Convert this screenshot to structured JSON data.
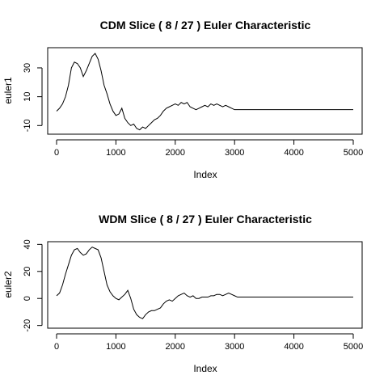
{
  "chart_data": [
    {
      "type": "line",
      "title": "CDM Slice ( 8 / 27 ) Euler Characteristic",
      "xlabel": "Index",
      "ylabel": "euler1",
      "xlim": [
        -150,
        5150
      ],
      "ylim": [
        -16,
        44
      ],
      "xticks": [
        0,
        1000,
        2000,
        3000,
        4000,
        5000
      ],
      "xtick_labels": [
        "0",
        "1000",
        "2000",
        "3000",
        "4000",
        "5000"
      ],
      "yticks": [
        -10,
        10,
        30
      ],
      "ytick_labels": [
        "-10",
        "10",
        "30"
      ],
      "grid": false,
      "x": [
        0,
        50,
        100,
        150,
        200,
        250,
        300,
        350,
        400,
        450,
        500,
        550,
        600,
        650,
        700,
        750,
        800,
        850,
        900,
        950,
        1000,
        1050,
        1100,
        1150,
        1200,
        1250,
        1300,
        1350,
        1400,
        1450,
        1500,
        1550,
        1600,
        1650,
        1700,
        1750,
        1800,
        1850,
        1900,
        1950,
        2000,
        2050,
        2100,
        2150,
        2200,
        2250,
        2300,
        2350,
        2400,
        2450,
        2500,
        2550,
        2600,
        2650,
        2700,
        2750,
        2800,
        2850,
        2900,
        2950,
        3000,
        3050,
        3100,
        5000
      ],
      "y": [
        0,
        2,
        5,
        10,
        18,
        30,
        34,
        33,
        30,
        24,
        28,
        33,
        38,
        40,
        36,
        28,
        18,
        12,
        5,
        0,
        -3,
        -2,
        2,
        -5,
        -8,
        -10,
        -9,
        -12,
        -13,
        -11,
        -12,
        -10,
        -8,
        -6,
        -5,
        -3,
        0,
        2,
        3,
        4,
        5,
        4,
        6,
        5,
        6,
        3,
        2,
        1,
        2,
        3,
        4,
        3,
        5,
        4,
        5,
        4,
        3,
        4,
        3,
        2,
        1,
        1,
        1,
        1
      ]
    },
    {
      "type": "line",
      "title": "WDM Slice ( 8 / 27 ) Euler Characteristic",
      "xlabel": "Index",
      "ylabel": "euler2",
      "xlim": [
        -150,
        5150
      ],
      "ylim": [
        -22,
        42
      ],
      "xticks": [
        0,
        1000,
        2000,
        3000,
        4000,
        5000
      ],
      "xtick_labels": [
        "0",
        "1000",
        "2000",
        "3000",
        "4000",
        "5000"
      ],
      "yticks": [
        -20,
        0,
        20,
        40
      ],
      "ytick_labels": [
        "-20",
        "0",
        "20",
        "40"
      ],
      "grid": false,
      "x": [
        0,
        50,
        100,
        150,
        200,
        250,
        300,
        350,
        400,
        450,
        500,
        550,
        600,
        650,
        700,
        750,
        800,
        850,
        900,
        950,
        1000,
        1050,
        1100,
        1150,
        1200,
        1250,
        1300,
        1350,
        1400,
        1450,
        1500,
        1550,
        1600,
        1650,
        1700,
        1750,
        1800,
        1850,
        1900,
        1950,
        2000,
        2050,
        2100,
        2150,
        2200,
        2250,
        2300,
        2350,
        2400,
        2450,
        2500,
        2550,
        2600,
        2650,
        2700,
        2750,
        2800,
        2850,
        2900,
        2950,
        3000,
        3050,
        3100,
        5000
      ],
      "y": [
        2,
        4,
        10,
        18,
        25,
        32,
        36,
        37,
        34,
        32,
        33,
        36,
        38,
        37,
        36,
        30,
        20,
        10,
        5,
        2,
        0,
        -1,
        1,
        3,
        6,
        0,
        -8,
        -12,
        -14,
        -15,
        -12,
        -10,
        -9,
        -9,
        -8,
        -7,
        -4,
        -2,
        -1,
        -2,
        0,
        2,
        3,
        4,
        2,
        1,
        2,
        0,
        0,
        1,
        1,
        1,
        2,
        2,
        3,
        3,
        2,
        3,
        4,
        3,
        2,
        1,
        1,
        1
      ]
    }
  ]
}
